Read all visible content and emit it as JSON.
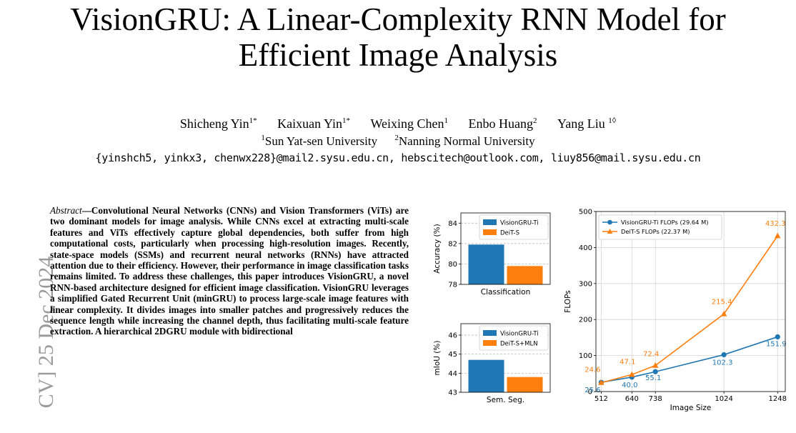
{
  "paper": {
    "title_line1": "VisionGRU: A Linear-Complexity RNN Model for",
    "title_line2": "Efficient Image Analysis",
    "authors": [
      {
        "name": "Shicheng Yin",
        "mark": "1*"
      },
      {
        "name": "Kaixuan Yin",
        "mark": "1*"
      },
      {
        "name": "Weixing Chen",
        "mark": "1"
      },
      {
        "name": "Enbo Huang",
        "mark": "2"
      },
      {
        "name": "Yang Liu",
        "mark": "1◊"
      }
    ],
    "affiliations": [
      {
        "mark": "1",
        "name": "Sun Yat-sen University"
      },
      {
        "mark": "2",
        "name": "Nanning Normal University"
      }
    ],
    "emails": "{yinshch5, yinkx3, chenwx228}@mail2.sysu.edu.cn, hebscitech@outlook.com, liuy856@mail.sysu.edu.cn",
    "arxiv_stamp": "CV]  25 Dec 2024",
    "abstract_label": "Abstract",
    "abstract_text": "—Convolutional Neural Networks (CNNs) and Vision Transformers (ViTs) are two dominant models for image analysis. While CNNs excel at extracting multi-scale features and ViTs effectively capture global dependencies, both suffer from high computational costs, particularly when processing high-resolution images. Recently, state-space models (SSMs) and recurrent neural networks (RNNs) have attracted attention due to their efficiency. However, their performance in image classification tasks remains limited. To address these challenges, this paper introduces VisionGRU, a novel RNN-based architecture designed for efficient image classification. VisionGRU leverages a simplified Gated Recurrent Unit (minGRU) to process large-scale image features with linear complexity. It divides images into smaller patches and progressively reduces the sequence length while increasing the channel depth, thus facilitating multi-scale feature extraction. A hierarchical 2DGRU module with bidirectional"
  },
  "chart_data": [
    {
      "type": "bar",
      "categories": [
        "Classification"
      ],
      "series": [
        {
          "name": "VisionGRU-Ti",
          "values": [
            81.9
          ],
          "color": "#1f77b4"
        },
        {
          "name": "DeiT-S",
          "values": [
            79.8
          ],
          "color": "#ff7f0e"
        }
      ],
      "xlabel": "Classification",
      "ylabel": "Accuracy (%)",
      "ylim": [
        78,
        85
      ],
      "yticks": [
        78,
        80,
        82,
        84
      ],
      "grid": "y-dashed",
      "legend": "top-right"
    },
    {
      "type": "bar",
      "categories": [
        "Sem. Seg."
      ],
      "series": [
        {
          "name": "VisionGRU-Ti",
          "values": [
            44.7
          ],
          "color": "#1f77b4"
        },
        {
          "name": "DeiT-S+MLN",
          "values": [
            43.8
          ],
          "color": "#ff7f0e"
        }
      ],
      "xlabel": "Sem. Seg.",
      "ylabel": "mIoU (%)",
      "ylim": [
        43,
        46.6
      ],
      "yticks": [
        43,
        44,
        45,
        46
      ],
      "grid": "y-dashed",
      "legend": "top-right"
    },
    {
      "type": "line",
      "x": [
        512,
        640,
        738,
        1024,
        1248
      ],
      "series": [
        {
          "name": "VisionGRU-Ti FLOPs (29.64 M)",
          "values": [
            25.6,
            40.0,
            55.1,
            102.3,
            151.9
          ],
          "labels": [
            "25.6",
            "40.0",
            "55.1",
            "102.3",
            "151.9"
          ],
          "color": "#1f77b4",
          "marker": "circle"
        },
        {
          "name": "DeiT-S FLOPs (22.37 M)",
          "values": [
            24.6,
            47.1,
            72.4,
            215.4,
            432.3
          ],
          "labels": [
            "24.6",
            "47.1",
            "72.4",
            "215.4",
            "432.3"
          ],
          "color": "#ff7f0e",
          "marker": "triangle"
        }
      ],
      "xlabel": "Image Size",
      "ylabel": "FLOPs",
      "xlim": [
        490,
        1280
      ],
      "ylim": [
        0,
        500
      ],
      "xticks": [
        512,
        640,
        738,
        1024,
        1248
      ],
      "yticks": [
        0,
        100,
        200,
        300,
        400,
        500
      ],
      "grid": "both",
      "legend": "top-left"
    }
  ]
}
